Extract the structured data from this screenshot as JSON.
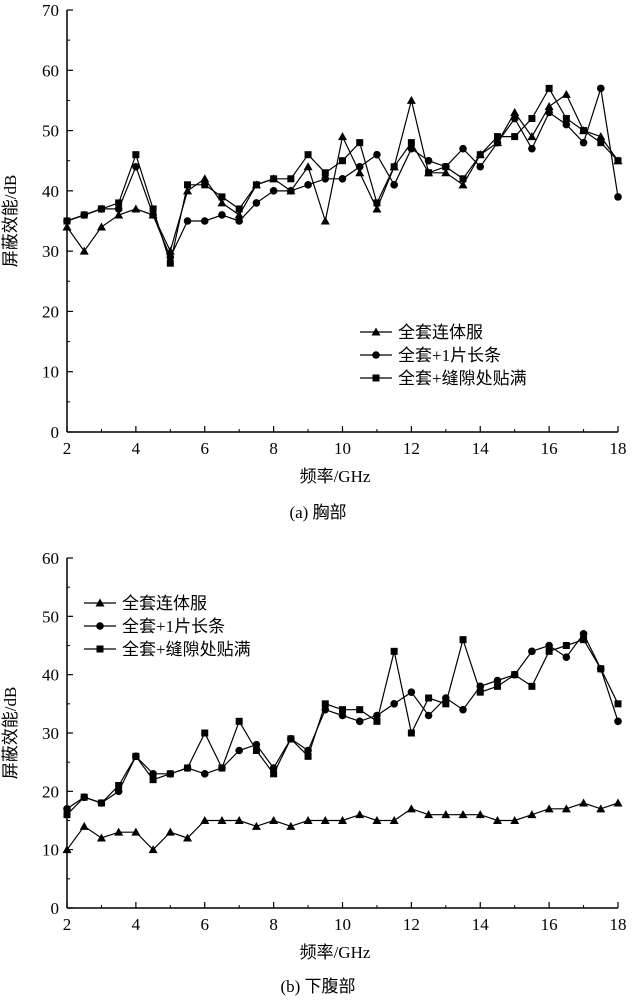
{
  "chart_data": [
    {
      "type": "line",
      "caption": "(a) 胸部",
      "xlabel": "频率/GHz",
      "ylabel": "屏蔽效能/dB",
      "xlim": [
        2,
        18
      ],
      "ylim": [
        0,
        70
      ],
      "xticks": [
        2,
        4,
        6,
        8,
        10,
        12,
        14,
        16,
        18
      ],
      "yticks": [
        0,
        10,
        20,
        30,
        40,
        50,
        60,
        70
      ],
      "legend_position": "bottom-right",
      "x": [
        2,
        2.5,
        3,
        3.5,
        4,
        4.5,
        5,
        5.5,
        6,
        6.5,
        7,
        7.5,
        8,
        8.5,
        9,
        9.5,
        10,
        10.5,
        11,
        11.5,
        12,
        12.5,
        13,
        13.5,
        14,
        14.5,
        15,
        15.5,
        16,
        16.5,
        17,
        17.5,
        18
      ],
      "series": [
        {
          "name": "全套连体服",
          "marker": "triangle",
          "values": [
            34,
            30,
            34,
            36,
            37,
            36,
            30,
            40,
            42,
            38,
            36,
            41,
            42,
            40,
            44,
            35,
            49,
            43,
            37,
            44,
            55,
            43,
            43,
            41,
            46,
            48,
            53,
            49,
            54,
            56,
            50,
            49,
            45
          ]
        },
        {
          "name": "全套+1片长条",
          "marker": "circle",
          "values": [
            35,
            36,
            37,
            37,
            44,
            36,
            29,
            35,
            35,
            36,
            35,
            38,
            40,
            40,
            41,
            42,
            42,
            44,
            46,
            41,
            47,
            45,
            44,
            47,
            44,
            48,
            52,
            47,
            53,
            51,
            48,
            57,
            39
          ]
        },
        {
          "name": "全套+缝隙处贴满",
          "marker": "square",
          "values": [
            35,
            36,
            37,
            38,
            46,
            37,
            28,
            41,
            41,
            39,
            37,
            41,
            42,
            42,
            46,
            43,
            45,
            48,
            38,
            44,
            48,
            43,
            44,
            42,
            46,
            49,
            49,
            52,
            57,
            52,
            50,
            48,
            45
          ]
        }
      ]
    },
    {
      "type": "line",
      "caption": "(b) 下腹部",
      "xlabel": "频率/GHz",
      "ylabel": "屏蔽效能/dB",
      "xlim": [
        2,
        18
      ],
      "ylim": [
        0,
        60
      ],
      "xticks": [
        2,
        4,
        6,
        8,
        10,
        12,
        14,
        16,
        18
      ],
      "yticks": [
        0,
        10,
        20,
        30,
        40,
        50,
        60
      ],
      "legend_position": "top-left",
      "x": [
        2,
        2.5,
        3,
        3.5,
        4,
        4.5,
        5,
        5.5,
        6,
        6.5,
        7,
        7.5,
        8,
        8.5,
        9,
        9.5,
        10,
        10.5,
        11,
        11.5,
        12,
        12.5,
        13,
        13.5,
        14,
        14.5,
        15,
        15.5,
        16,
        16.5,
        17,
        17.5,
        18
      ],
      "series": [
        {
          "name": "全套连体服",
          "marker": "triangle",
          "values": [
            10,
            14,
            12,
            13,
            13,
            10,
            13,
            12,
            15,
            15,
            15,
            14,
            15,
            14,
            15,
            15,
            15,
            16,
            15,
            15,
            17,
            16,
            16,
            16,
            16,
            15,
            15,
            16,
            17,
            17,
            18,
            17,
            18
          ]
        },
        {
          "name": "全套+1片长条",
          "marker": "circle",
          "values": [
            17,
            19,
            18,
            20,
            26,
            23,
            23,
            24,
            23,
            24,
            27,
            28,
            24,
            29,
            27,
            34,
            33,
            32,
            33,
            35,
            37,
            33,
            36,
            34,
            38,
            39,
            40,
            44,
            45,
            43,
            47,
            41,
            32
          ]
        },
        {
          "name": "全套+缝隙处贴满",
          "marker": "square",
          "values": [
            16,
            19,
            18,
            21,
            26,
            22,
            23,
            24,
            30,
            24,
            32,
            27,
            23,
            29,
            26,
            35,
            34,
            34,
            32,
            44,
            30,
            36,
            35,
            46,
            37,
            38,
            40,
            38,
            44,
            45,
            46,
            41,
            35
          ]
        }
      ]
    }
  ]
}
